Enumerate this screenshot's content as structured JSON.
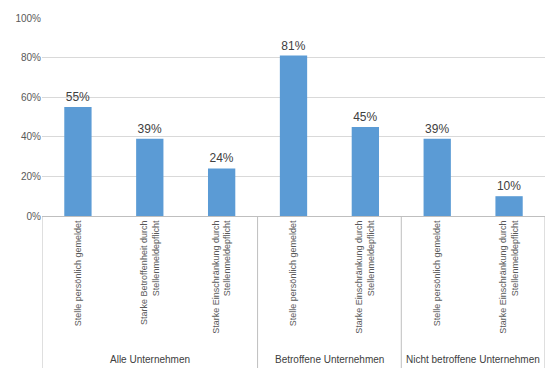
{
  "chart_data": {
    "type": "bar",
    "categories": [
      [
        "Alle Unternehmen",
        "Stelle persönlich gemeldet"
      ],
      [
        "Alle Unternehmen",
        "Starke Betroffenheit durch Stellenmeldepflicht"
      ],
      [
        "Alle Unternehmen",
        "Starke Einschränkung durch Stellenmeldepflicht"
      ],
      [
        "Betroffene Unternehmen",
        "Stelle persönlich gemeldet"
      ],
      [
        "Betroffene Unternehmen",
        "Starke Einschränkung durch Stellenmeldepflicht"
      ],
      [
        "Nicht betroffene Unternehmen",
        "Stelle persönlich gemeldet"
      ],
      [
        "Nicht betroffene Unternehmen",
        "Starke Einschränkung durch Stellenmeldepflicht"
      ]
    ],
    "values": [
      55,
      39,
      24,
      81,
      45,
      39,
      10
    ],
    "value_labels": [
      "55%",
      "39%",
      "24%",
      "81%",
      "45%",
      "39%",
      "10%"
    ],
    "color": "#5b9bd5",
    "ylim": [
      0,
      100
    ],
    "yticks": [
      {
        "value": 0,
        "label": "0%"
      },
      {
        "value": 20,
        "label": "20%"
      },
      {
        "value": 40,
        "label": "40%"
      },
      {
        "value": 60,
        "label": "60%"
      },
      {
        "value": 80,
        "label": "80%"
      },
      {
        "value": 100,
        "label": "100%"
      }
    ],
    "grid": true,
    "data_labels": true
  }
}
